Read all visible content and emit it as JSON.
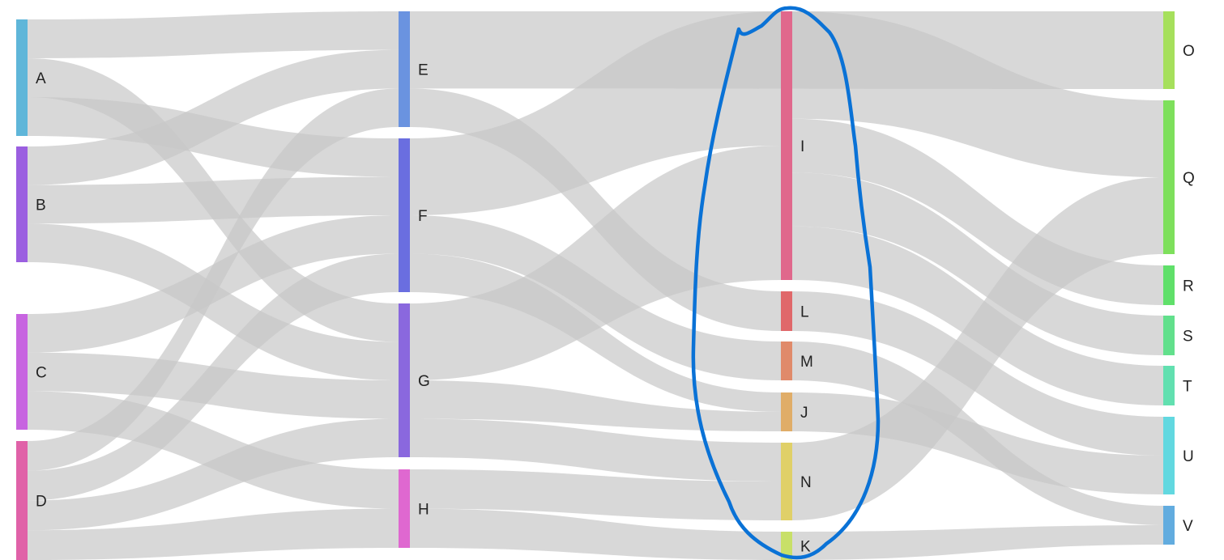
{
  "diagram": {
    "type": "sankey",
    "link_color": "#c8c8c8",
    "highlight_color": "#0a72d6",
    "nodes": [
      {
        "id": "A",
        "label": "A",
        "color": "#5fb6d9"
      },
      {
        "id": "B",
        "label": "B",
        "color": "#9b5fe0"
      },
      {
        "id": "C",
        "label": "C",
        "color": "#c764e0"
      },
      {
        "id": "D",
        "label": "D",
        "color": "#e062a8"
      },
      {
        "id": "E",
        "label": "E",
        "color": "#6a93e0"
      },
      {
        "id": "F",
        "label": "F",
        "color": "#6a6ee0"
      },
      {
        "id": "G",
        "label": "G",
        "color": "#8a68de"
      },
      {
        "id": "H",
        "label": "H",
        "color": "#df68d0"
      },
      {
        "id": "I",
        "label": "I",
        "color": "#e0688c"
      },
      {
        "id": "L",
        "label": "L",
        "color": "#e0686a"
      },
      {
        "id": "M",
        "label": "M",
        "color": "#e08a6a"
      },
      {
        "id": "J",
        "label": "J",
        "color": "#e0ad68"
      },
      {
        "id": "N",
        "label": "N",
        "color": "#e0d068"
      },
      {
        "id": "K",
        "label": "K",
        "color": "#c8e068"
      },
      {
        "id": "O",
        "label": "O",
        "color": "#a6e05c"
      },
      {
        "id": "Q",
        "label": "Q",
        "color": "#7ee05c"
      },
      {
        "id": "R",
        "label": "R",
        "color": "#60e06a"
      },
      {
        "id": "S",
        "label": "S",
        "color": "#62e08c"
      },
      {
        "id": "T",
        "label": "T",
        "color": "#62e0b0"
      },
      {
        "id": "U",
        "label": "U",
        "color": "#62d8e0"
      },
      {
        "id": "V",
        "label": "V",
        "color": "#62acdf"
      }
    ],
    "links": [
      {
        "source": "A",
        "target": "E",
        "value": 1
      },
      {
        "source": "A",
        "target": "G",
        "value": 1
      },
      {
        "source": "A",
        "target": "F",
        "value": 1
      },
      {
        "source": "B",
        "target": "E",
        "value": 1
      },
      {
        "source": "B",
        "target": "F",
        "value": 1
      },
      {
        "source": "B",
        "target": "G",
        "value": 1
      },
      {
        "source": "C",
        "target": "F",
        "value": 1
      },
      {
        "source": "C",
        "target": "G",
        "value": 1
      },
      {
        "source": "C",
        "target": "H",
        "value": 1
      },
      {
        "source": "D",
        "target": "E",
        "value": 1
      },
      {
        "source": "D",
        "target": "F",
        "value": 1
      },
      {
        "source": "D",
        "target": "G",
        "value": 1
      },
      {
        "source": "D",
        "target": "H",
        "value": 1
      },
      {
        "source": "E",
        "target": "O",
        "value": 2
      },
      {
        "source": "E",
        "target": "L",
        "value": 1
      },
      {
        "source": "F",
        "target": "I",
        "value": 2
      },
      {
        "source": "F",
        "target": "M",
        "value": 1
      },
      {
        "source": "F",
        "target": "J",
        "value": 1
      },
      {
        "source": "G",
        "target": "I",
        "value": 2
      },
      {
        "source": "G",
        "target": "J",
        "value": 1
      },
      {
        "source": "G",
        "target": "N",
        "value": 1
      },
      {
        "source": "H",
        "target": "N",
        "value": 1
      },
      {
        "source": "H",
        "target": "K",
        "value": 1
      },
      {
        "source": "I",
        "target": "Q",
        "value": 2
      },
      {
        "source": "I",
        "target": "R",
        "value": 1
      },
      {
        "source": "I",
        "target": "S",
        "value": 1
      },
      {
        "source": "I",
        "target": "T",
        "value": 1
      },
      {
        "source": "L",
        "target": "U",
        "value": 1
      },
      {
        "source": "M",
        "target": "V",
        "value": 1
      },
      {
        "source": "J",
        "target": "U",
        "value": 1
      },
      {
        "source": "N",
        "target": "Q",
        "value": 2
      },
      {
        "source": "K",
        "target": "V",
        "value": 1
      }
    ]
  }
}
